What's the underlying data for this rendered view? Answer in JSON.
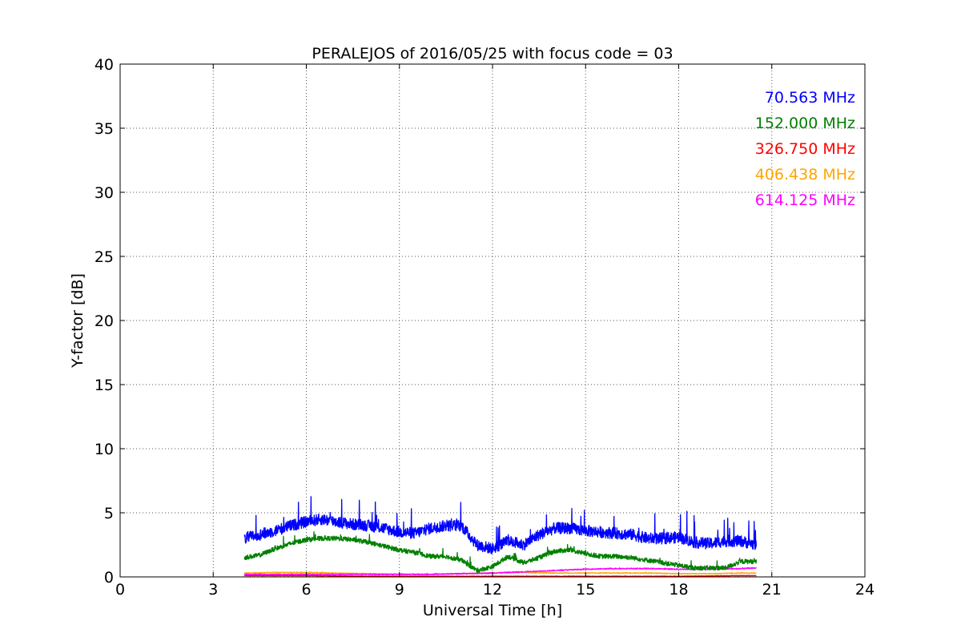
{
  "chart_data": {
    "type": "line",
    "title": "PERALEJOS of 2016/05/25 with focus code = 03",
    "xlabel": "Universal Time [h]",
    "ylabel": "Y-factor [dB]",
    "xlim": [
      0,
      24
    ],
    "ylim": [
      0,
      40
    ],
    "x_ticks": [
      0,
      3,
      6,
      9,
      12,
      15,
      18,
      21,
      24
    ],
    "y_ticks": [
      0,
      5,
      10,
      15,
      20,
      25,
      30,
      35,
      40
    ],
    "grid": true,
    "legend_placement": "top-right",
    "series": [
      {
        "name": "70.563 MHz",
        "color": "#0000ff",
        "x": [
          4.0,
          4.5,
          5.0,
          5.5,
          6.0,
          6.5,
          7.0,
          7.5,
          8.0,
          8.5,
          9.0,
          9.5,
          10.0,
          10.5,
          11.0,
          11.5,
          12.0,
          12.5,
          13.0,
          13.5,
          14.0,
          14.5,
          15.0,
          15.5,
          16.0,
          16.5,
          17.0,
          17.5,
          18.0,
          18.5,
          19.0,
          19.5,
          20.0,
          20.5
        ],
        "y": [
          3.0,
          3.3,
          3.6,
          4.0,
          4.3,
          4.5,
          4.3,
          4.1,
          4.0,
          3.8,
          3.5,
          3.4,
          3.8,
          4.0,
          4.0,
          2.5,
          2.2,
          2.8,
          2.5,
          3.3,
          3.8,
          3.8,
          3.6,
          3.5,
          3.4,
          3.3,
          3.0,
          3.0,
          3.1,
          2.7,
          2.6,
          2.8,
          2.8,
          2.5
        ]
      },
      {
        "name": "152.000 MHz",
        "color": "#008000",
        "x": [
          4.0,
          4.5,
          5.0,
          5.5,
          6.0,
          6.5,
          7.0,
          7.5,
          8.0,
          8.5,
          9.0,
          9.5,
          10.0,
          10.5,
          11.0,
          11.5,
          12.0,
          12.5,
          13.0,
          13.5,
          14.0,
          14.5,
          15.0,
          15.5,
          16.0,
          16.5,
          17.0,
          17.5,
          18.0,
          18.5,
          19.0,
          19.5,
          20.0,
          20.5
        ],
        "y": [
          1.5,
          1.7,
          2.2,
          2.6,
          2.9,
          3.0,
          3.0,
          2.9,
          2.7,
          2.4,
          2.1,
          1.9,
          1.6,
          1.6,
          1.3,
          0.5,
          0.8,
          1.6,
          1.1,
          1.5,
          2.0,
          2.1,
          1.8,
          1.6,
          1.6,
          1.5,
          1.3,
          1.1,
          0.9,
          0.7,
          0.7,
          0.7,
          1.2,
          1.2
        ]
      },
      {
        "name": "326.750 MHz",
        "color": "#ff0000",
        "x": [
          4.0,
          6.0,
          8.0,
          10.0,
          12.0,
          14.0,
          16.0,
          18.0,
          20.0,
          20.5
        ],
        "y": [
          0.1,
          0.1,
          0.05,
          0.05,
          0.05,
          0.05,
          0.05,
          0.05,
          0.1,
          0.1
        ]
      },
      {
        "name": "406.438 MHz",
        "color": "#ffa500",
        "x": [
          4.0,
          5.0,
          6.0,
          7.0,
          8.0,
          9.0,
          10.0,
          11.0,
          12.0,
          13.0,
          14.0,
          15.0,
          16.0,
          17.0,
          18.0,
          19.0,
          20.0,
          20.5
        ],
        "y": [
          0.3,
          0.35,
          0.35,
          0.3,
          0.25,
          0.2,
          0.2,
          0.25,
          0.3,
          0.35,
          0.3,
          0.3,
          0.3,
          0.3,
          0.25,
          0.25,
          0.3,
          0.3
        ]
      },
      {
        "name": "614.125 MHz",
        "color": "#ff00ff",
        "x": [
          4.0,
          5.0,
          6.0,
          7.0,
          8.0,
          9.0,
          10.0,
          11.0,
          12.0,
          13.0,
          14.0,
          15.0,
          16.0,
          17.0,
          18.0,
          19.0,
          20.0,
          20.5
        ],
        "y": [
          0.2,
          0.2,
          0.2,
          0.2,
          0.2,
          0.2,
          0.2,
          0.25,
          0.3,
          0.4,
          0.5,
          0.6,
          0.65,
          0.65,
          0.6,
          0.6,
          0.65,
          0.7
        ]
      }
    ]
  }
}
